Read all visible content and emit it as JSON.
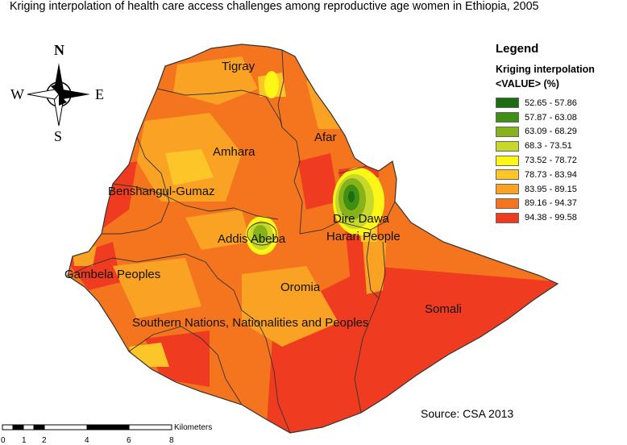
{
  "title": "Kriging interpolation of health care access challenges among reproductive age women in Ethiopia, 2005",
  "legend": {
    "title": "Legend",
    "subtitle_line1": "Kriging interpolation",
    "subtitle_line2": "<VALUE> (%)",
    "classes": [
      {
        "label": "52.65 - 57.86",
        "color": "#1e6b12"
      },
      {
        "label": "57.87 - 63.08",
        "color": "#3f8f14"
      },
      {
        "label": "63.09 - 68.29",
        "color": "#87b21a"
      },
      {
        "label": "68.3 - 73.51",
        "color": "#c6d92a"
      },
      {
        "label": "73.52 - 78.72",
        "color": "#fdf617"
      },
      {
        "label": "78.73 - 83.94",
        "color": "#fcc628"
      },
      {
        "label": "83.95 - 89.15",
        "color": "#f9a223"
      },
      {
        "label": "89.16 - 94.37",
        "color": "#f4751e"
      },
      {
        "label": "94.38 - 99.58",
        "color": "#ef3c20"
      }
    ]
  },
  "regions": {
    "tigray": "Tigray",
    "afar": "Afar",
    "amhara": "Amhara",
    "benshangul": "Benshangul-Gumaz",
    "addis": "Addis Abeba",
    "dire_dawa": "Dire Dawa",
    "harari": "Harari People",
    "gambela": "Gambela Peoples",
    "oromia": "Oromia",
    "somali": "Somali",
    "snnp": "Southern Nations, Nationalities and Peoples"
  },
  "compass": {
    "n": "N",
    "s": "S",
    "e": "E",
    "w": "W"
  },
  "scale_bar": {
    "unit": "Kilometers",
    "ticks": [
      "0",
      "1",
      "2",
      "4",
      "6",
      "8"
    ]
  },
  "source": "Source: CSA 2013"
}
